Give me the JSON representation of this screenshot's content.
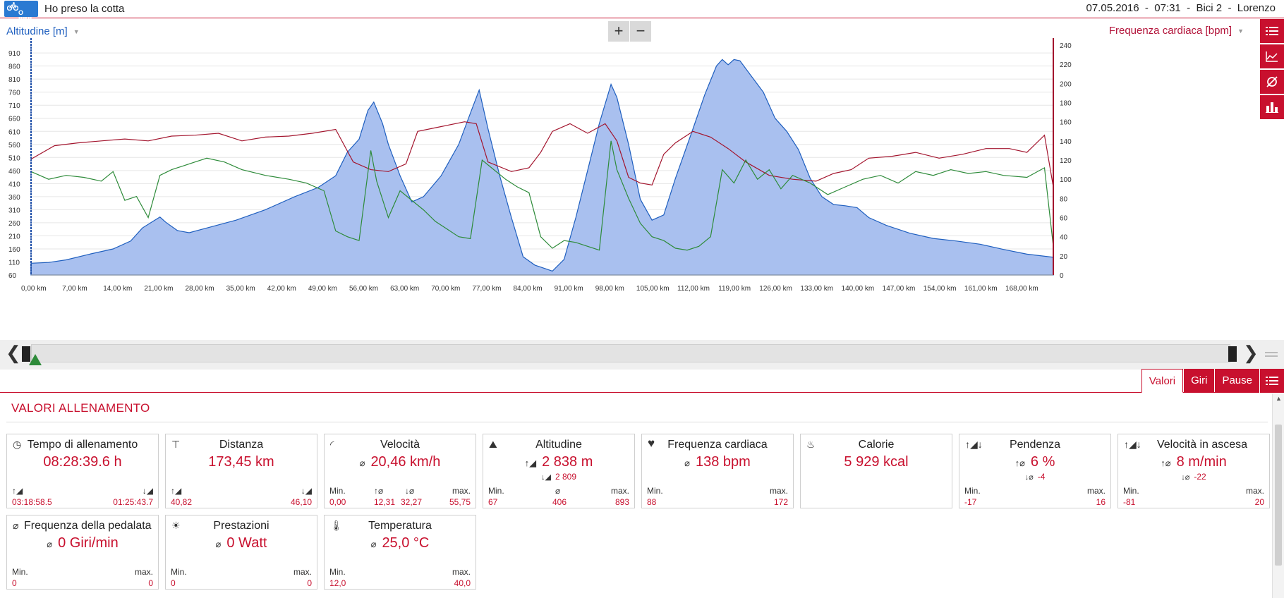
{
  "header": {
    "logo_text": "O RDB",
    "activity_title": "Ho preso la cotta",
    "meta": "07.05.2016  -  07:31  -  Bici 2  -  Lorenzo"
  },
  "chart_toolbar": {
    "left_axis_selector": "Altitudine [m]",
    "right_axis_selector": "Frequenza cardiaca [bpm]",
    "zoom_in": "+",
    "zoom_out": "−",
    "side_icons": [
      "list-icon",
      "line-chart-icon",
      "average-icon",
      "bar-chart-icon"
    ]
  },
  "chart_data": {
    "type": "area",
    "xlabel": "",
    "x_ticks": [
      "0,00 km",
      "7,00 km",
      "14,00 km",
      "21,00 km",
      "28,00 km",
      "35,00 km",
      "42,00 km",
      "49,00 km",
      "56,00 km",
      "63,00 km",
      "70,00 km",
      "77,00 km",
      "84,00 km",
      "91,00 km",
      "98,00 km",
      "105,00 km",
      "112,00 km",
      "119,00 km",
      "126,00 km",
      "133,00 km",
      "140,00 km",
      "147,00 km",
      "154,00 km",
      "161,00 km",
      "168,00 km"
    ],
    "xlim": [
      0,
      174.5
    ],
    "y_left": {
      "label": "Altitudine [m]",
      "ticks": [
        60,
        110,
        160,
        210,
        260,
        310,
        360,
        410,
        460,
        510,
        560,
        610,
        660,
        710,
        760,
        810,
        860,
        910
      ],
      "ylim": [
        60,
        940
      ]
    },
    "y_right": {
      "label": "Frequenza cardiaca [bpm]",
      "ticks": [
        0,
        20,
        40,
        60,
        80,
        100,
        120,
        140,
        160,
        180,
        200,
        220,
        240
      ],
      "ylim": [
        0,
        240
      ]
    },
    "series": [
      {
        "name": "Altitudine [m]",
        "axis": "left",
        "color": "#1f5fbf",
        "fill": "#a9c0ef",
        "points": [
          [
            0,
            105
          ],
          [
            3,
            108
          ],
          [
            6,
            118
          ],
          [
            10,
            140
          ],
          [
            14,
            160
          ],
          [
            17,
            190
          ],
          [
            19,
            240
          ],
          [
            21,
            268
          ],
          [
            22,
            282
          ],
          [
            23,
            262
          ],
          [
            25,
            230
          ],
          [
            27,
            222
          ],
          [
            30,
            240
          ],
          [
            35,
            270
          ],
          [
            40,
            310
          ],
          [
            45,
            360
          ],
          [
            49,
            395
          ],
          [
            52,
            440
          ],
          [
            54,
            530
          ],
          [
            56,
            580
          ],
          [
            57.5,
            690
          ],
          [
            58.5,
            722
          ],
          [
            60,
            640
          ],
          [
            61,
            560
          ],
          [
            63,
            440
          ],
          [
            65,
            340
          ],
          [
            67,
            360
          ],
          [
            70,
            440
          ],
          [
            73,
            560
          ],
          [
            75,
            680
          ],
          [
            76.5,
            768
          ],
          [
            78,
            620
          ],
          [
            80,
            440
          ],
          [
            82,
            280
          ],
          [
            84,
            130
          ],
          [
            86,
            98
          ],
          [
            89,
            75
          ],
          [
            91,
            120
          ],
          [
            93,
            280
          ],
          [
            95,
            460
          ],
          [
            97,
            640
          ],
          [
            99,
            790
          ],
          [
            100,
            740
          ],
          [
            102,
            560
          ],
          [
            104,
            350
          ],
          [
            106,
            270
          ],
          [
            108,
            290
          ],
          [
            110,
            430
          ],
          [
            113,
            620
          ],
          [
            115,
            750
          ],
          [
            117,
            860
          ],
          [
            118,
            885
          ],
          [
            119,
            865
          ],
          [
            120,
            885
          ],
          [
            121,
            880
          ],
          [
            123,
            820
          ],
          [
            125,
            760
          ],
          [
            127,
            660
          ],
          [
            129,
            610
          ],
          [
            131,
            540
          ],
          [
            133,
            430
          ],
          [
            135,
            360
          ],
          [
            137,
            330
          ],
          [
            139,
            325
          ],
          [
            141,
            318
          ],
          [
            143,
            280
          ],
          [
            146,
            250
          ],
          [
            150,
            220
          ],
          [
            154,
            200
          ],
          [
            158,
            190
          ],
          [
            162,
            178
          ],
          [
            166,
            158
          ],
          [
            170,
            140
          ],
          [
            174.5,
            128
          ]
        ]
      },
      {
        "name": "Frequenza cardiaca [bpm]",
        "axis": "right",
        "color": "#a3152e",
        "points": [
          [
            0,
            121
          ],
          [
            4,
            135
          ],
          [
            8,
            138
          ],
          [
            12,
            140
          ],
          [
            16,
            142
          ],
          [
            20,
            140
          ],
          [
            24,
            145
          ],
          [
            28,
            146
          ],
          [
            32,
            148
          ],
          [
            36,
            140
          ],
          [
            40,
            144
          ],
          [
            44,
            145
          ],
          [
            48,
            148
          ],
          [
            52,
            152
          ],
          [
            55,
            118
          ],
          [
            58,
            110
          ],
          [
            61,
            108
          ],
          [
            64,
            116
          ],
          [
            66,
            150
          ],
          [
            70,
            155
          ],
          [
            74,
            160
          ],
          [
            76,
            158
          ],
          [
            78,
            118
          ],
          [
            82,
            108
          ],
          [
            85,
            112
          ],
          [
            87,
            128
          ],
          [
            89,
            150
          ],
          [
            92,
            158
          ],
          [
            95,
            148
          ],
          [
            98,
            158
          ],
          [
            100,
            140
          ],
          [
            102,
            102
          ],
          [
            104,
            96
          ],
          [
            106,
            94
          ],
          [
            108,
            126
          ],
          [
            110,
            138
          ],
          [
            113,
            150
          ],
          [
            116,
            144
          ],
          [
            119,
            132
          ],
          [
            122,
            118
          ],
          [
            126,
            104
          ],
          [
            130,
            100
          ],
          [
            134,
            98
          ],
          [
            137,
            106
          ],
          [
            140,
            110
          ],
          [
            143,
            122
          ],
          [
            147,
            124
          ],
          [
            151,
            128
          ],
          [
            155,
            122
          ],
          [
            159,
            126
          ],
          [
            163,
            132
          ],
          [
            167,
            132
          ],
          [
            170,
            128
          ],
          [
            173,
            146
          ],
          [
            174.5,
            92
          ]
        ]
      },
      {
        "name": "Velocità",
        "axis": "right",
        "color": "#2e8b3a",
        "points": [
          [
            0,
            108
          ],
          [
            3,
            100
          ],
          [
            6,
            104
          ],
          [
            9,
            102
          ],
          [
            12,
            98
          ],
          [
            14,
            108
          ],
          [
            16,
            78
          ],
          [
            18,
            82
          ],
          [
            20,
            60
          ],
          [
            22,
            104
          ],
          [
            24,
            110
          ],
          [
            26,
            114
          ],
          [
            28,
            118
          ],
          [
            30,
            122
          ],
          [
            33,
            118
          ],
          [
            36,
            110
          ],
          [
            40,
            104
          ],
          [
            44,
            100
          ],
          [
            47,
            96
          ],
          [
            50,
            88
          ],
          [
            52,
            46
          ],
          [
            54,
            40
          ],
          [
            56,
            36
          ],
          [
            58,
            130
          ],
          [
            59,
            98
          ],
          [
            61,
            60
          ],
          [
            63,
            88
          ],
          [
            65,
            78
          ],
          [
            67,
            68
          ],
          [
            69,
            56
          ],
          [
            71,
            48
          ],
          [
            73,
            40
          ],
          [
            75,
            38
          ],
          [
            77,
            120
          ],
          [
            79,
            110
          ],
          [
            81,
            100
          ],
          [
            83,
            92
          ],
          [
            85,
            86
          ],
          [
            87,
            40
          ],
          [
            89,
            28
          ],
          [
            91,
            36
          ],
          [
            93,
            34
          ],
          [
            95,
            30
          ],
          [
            97,
            26
          ],
          [
            99,
            140
          ],
          [
            100,
            110
          ],
          [
            102,
            80
          ],
          [
            104,
            54
          ],
          [
            106,
            40
          ],
          [
            108,
            36
          ],
          [
            110,
            28
          ],
          [
            112,
            26
          ],
          [
            114,
            30
          ],
          [
            116,
            40
          ],
          [
            118,
            110
          ],
          [
            120,
            96
          ],
          [
            122,
            120
          ],
          [
            124,
            100
          ],
          [
            126,
            110
          ],
          [
            128,
            90
          ],
          [
            130,
            104
          ],
          [
            133,
            96
          ],
          [
            136,
            84
          ],
          [
            139,
            92
          ],
          [
            142,
            100
          ],
          [
            145,
            104
          ],
          [
            148,
            96
          ],
          [
            151,
            108
          ],
          [
            154,
            104
          ],
          [
            157,
            110
          ],
          [
            160,
            106
          ],
          [
            163,
            108
          ],
          [
            166,
            104
          ],
          [
            170,
            102
          ],
          [
            173,
            112
          ],
          [
            174.5,
            30
          ]
        ]
      }
    ]
  },
  "range_slider": {
    "prev_label": "❮",
    "next_label": "❯"
  },
  "tabs": {
    "items": [
      "Valori",
      "Giri",
      "Pause"
    ],
    "active": "Valori"
  },
  "values_panel": {
    "section_title": "VALORI ALLENAMENTO",
    "min_label": "Min.",
    "max_label": "max.",
    "cards": {
      "tempo": {
        "title": "Tempo di allenamento",
        "main": "08:28:39.6 h",
        "left_val": "03:18:58.5",
        "right_val": "01:25:43.7"
      },
      "distanza": {
        "title": "Distanza",
        "main": "173,45 km",
        "left_val": "40,82",
        "right_val": "46,10"
      },
      "velocita": {
        "title": "Velocità",
        "main_prefix": "⌀",
        "main": "20,46 km/h",
        "min": "0,00",
        "up_val": "12,31",
        "down_val": "32,27",
        "max": "55,75"
      },
      "altitudine": {
        "title": "Altitudine",
        "main_prefix": "↑◢",
        "main": "2 838 m",
        "sub_prefix": "↓◢",
        "sub": "2 809",
        "min": "67",
        "avg_symbol": "⌀",
        "avg": "406",
        "max": "893"
      },
      "frequenza": {
        "title": "Frequenza cardiaca",
        "main_prefix": "⌀",
        "main": "138 bpm",
        "min": "88",
        "max": "172"
      },
      "calorie": {
        "title": "Calorie",
        "main": "5 929 kcal"
      },
      "pendenza": {
        "title": "Pendenza",
        "main_prefix": "↑⌀",
        "main": "6 %",
        "sub_prefix": "↓⌀",
        "sub": "-4",
        "min": "-17",
        "max": "16"
      },
      "vel_ascesa": {
        "title": "Velocità in ascesa",
        "main_prefix": "↑⌀",
        "main": "8 m/min",
        "sub_prefix": "↓⌀",
        "sub": "-22",
        "min": "-81",
        "max": "20"
      },
      "pedalata": {
        "title": "Frequenza della pedalata",
        "main_prefix": "⌀",
        "main": "0 Giri/min",
        "min": "0",
        "max": "0"
      },
      "prestazioni": {
        "title": "Prestazioni",
        "main_prefix": "⌀",
        "main": "0 Watt",
        "min": "0",
        "max": "0"
      },
      "temperatura": {
        "title": "Temperatura",
        "main_prefix": "⌀",
        "main": "25,0 °C",
        "min": "12,0",
        "max": "40,0"
      }
    }
  }
}
